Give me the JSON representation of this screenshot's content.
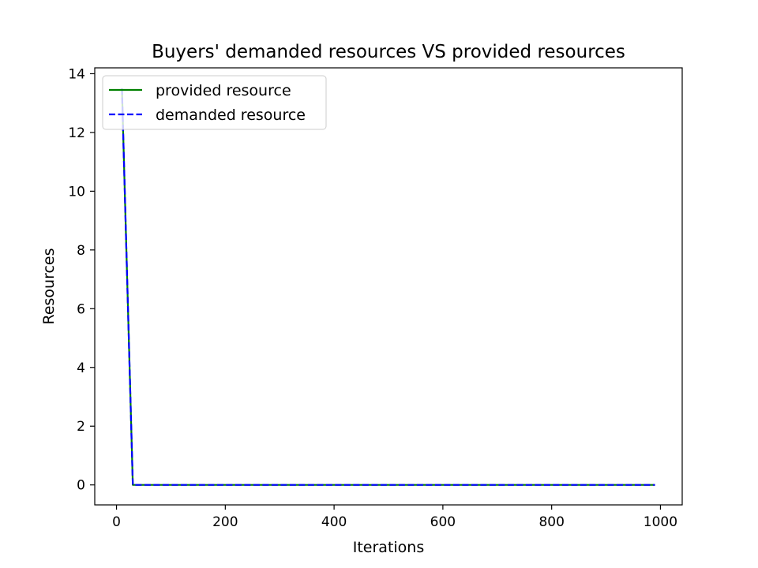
{
  "chart_data": {
    "type": "line",
    "title": "Buyers' demanded resources VS provided resources",
    "xlabel": "Iterations",
    "ylabel": "Resources",
    "xlim": [
      -40,
      1040
    ],
    "ylim": [
      -0.68,
      14.2
    ],
    "xticks": [
      0,
      200,
      400,
      600,
      800,
      1000
    ],
    "yticks": [
      0,
      2,
      4,
      6,
      8,
      10,
      12,
      14
    ],
    "grid": false,
    "legend_position": "top-left",
    "series": [
      {
        "name": "provided resource",
        "color": "#008000",
        "style": "solid",
        "x": [
          10,
          30,
          990
        ],
        "y": [
          13.5,
          0,
          0
        ]
      },
      {
        "name": "demanded resource",
        "color": "#0000ff",
        "style": "dashed",
        "x": [
          10,
          30,
          990
        ],
        "y": [
          13.5,
          0,
          0
        ]
      }
    ]
  }
}
